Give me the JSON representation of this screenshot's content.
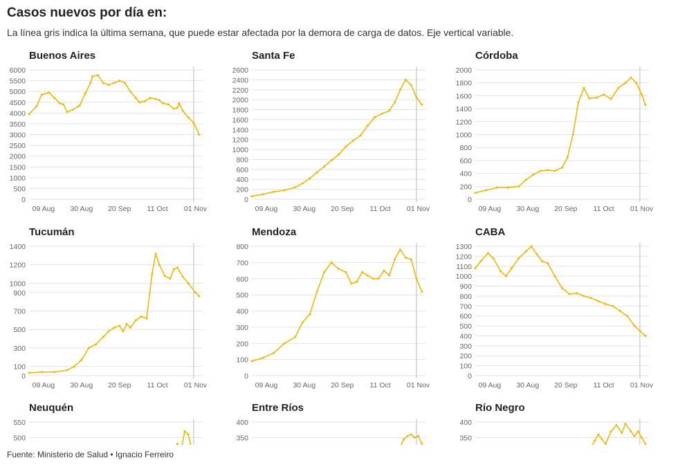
{
  "header": {
    "title": "Casos nuevos por día en:",
    "subtitle": "La línea gris indica la última semana, que puede estar afectada por la demora de carga de datos. Eje vertical variable."
  },
  "footer": {
    "source": "Fuente: Ministerio de Salud • Ignacio Ferreiro"
  },
  "style": {
    "line_color": "#f2b705",
    "grid_color": "#e2e2e2",
    "marker_color": "#bbbbbb"
  },
  "chart_data": [
    {
      "type": "line",
      "title": "Buenos Aires",
      "x_tick_labels": [
        "09 Aug",
        "30 Aug",
        "20 Sep",
        "11 Oct",
        "01 Nov"
      ],
      "y_ticks": [
        0,
        500,
        1000,
        1500,
        2000,
        2500,
        3000,
        3500,
        4000,
        4500,
        5000,
        5500,
        6000
      ],
      "ylim": [
        0,
        6000
      ],
      "x_range": [
        "2020-08-01",
        "2020-11-05"
      ],
      "last_week_marker": "2020-10-31",
      "x": [
        "2020-08-01",
        "2020-08-05",
        "2020-08-08",
        "2020-08-12",
        "2020-08-15",
        "2020-08-18",
        "2020-08-20",
        "2020-08-22",
        "2020-08-25",
        "2020-08-28",
        "2020-08-29",
        "2020-09-01",
        "2020-09-04",
        "2020-09-05",
        "2020-09-08",
        "2020-09-11",
        "2020-09-14",
        "2020-09-17",
        "2020-09-20",
        "2020-09-23",
        "2020-09-26",
        "2020-09-29",
        "2020-10-01",
        "2020-10-04",
        "2020-10-07",
        "2020-10-10",
        "2020-10-12",
        "2020-10-14",
        "2020-10-17",
        "2020-10-20",
        "2020-10-22",
        "2020-10-23",
        "2020-10-25",
        "2020-10-28",
        "2020-10-31",
        "2020-11-03"
      ],
      "y": [
        3950,
        4300,
        4850,
        4950,
        4700,
        4450,
        4400,
        4050,
        4150,
        4300,
        4350,
        4900,
        5400,
        5700,
        5750,
        5400,
        5300,
        5400,
        5500,
        5400,
        5000,
        4700,
        4500,
        4550,
        4700,
        4650,
        4600,
        4450,
        4400,
        4200,
        4250,
        4450,
        4100,
        3800,
        3550,
        3000
      ]
    },
    {
      "type": "line",
      "title": "Santa Fe",
      "x_tick_labels": [
        "09 Aug",
        "30 Aug",
        "20 Sep",
        "11 Oct",
        "01 Nov"
      ],
      "y_ticks": [
        0,
        200,
        400,
        600,
        800,
        1000,
        1200,
        1400,
        1600,
        1800,
        2000,
        2200,
        2400,
        2600
      ],
      "ylim": [
        0,
        2600
      ],
      "x_range": [
        "2020-08-01",
        "2020-11-05"
      ],
      "last_week_marker": "2020-10-31",
      "x": [
        "2020-08-01",
        "2020-08-07",
        "2020-08-13",
        "2020-08-19",
        "2020-08-25",
        "2020-08-29",
        "2020-09-02",
        "2020-09-06",
        "2020-09-10",
        "2020-09-14",
        "2020-09-18",
        "2020-09-22",
        "2020-09-26",
        "2020-09-30",
        "2020-10-04",
        "2020-10-08",
        "2020-10-12",
        "2020-10-16",
        "2020-10-19",
        "2020-10-22",
        "2020-10-25",
        "2020-10-28",
        "2020-10-31",
        "2020-11-03"
      ],
      "y": [
        60,
        100,
        150,
        180,
        240,
        320,
        420,
        540,
        660,
        780,
        900,
        1060,
        1180,
        1280,
        1480,
        1650,
        1720,
        1780,
        1950,
        2200,
        2400,
        2300,
        2050,
        1900
      ]
    },
    {
      "type": "line",
      "title": "Córdoba",
      "x_tick_labels": [
        "09 Aug",
        "30 Aug",
        "20 Sep",
        "11 Oct",
        "01 Nov"
      ],
      "y_ticks": [
        0,
        200,
        400,
        600,
        800,
        1000,
        1200,
        1400,
        1600,
        1800,
        2000
      ],
      "ylim": [
        0,
        2000
      ],
      "x_range": [
        "2020-08-01",
        "2020-11-05"
      ],
      "last_week_marker": "2020-10-31",
      "x": [
        "2020-08-01",
        "2020-08-07",
        "2020-08-13",
        "2020-08-19",
        "2020-08-25",
        "2020-08-29",
        "2020-09-02",
        "2020-09-06",
        "2020-09-10",
        "2020-09-14",
        "2020-09-18",
        "2020-09-21",
        "2020-09-24",
        "2020-09-27",
        "2020-09-30",
        "2020-10-03",
        "2020-10-07",
        "2020-10-11",
        "2020-10-15",
        "2020-10-19",
        "2020-10-23",
        "2020-10-26",
        "2020-10-29",
        "2020-11-01",
        "2020-11-03"
      ],
      "y": [
        100,
        140,
        180,
        180,
        200,
        300,
        380,
        440,
        450,
        440,
        490,
        650,
        1000,
        1500,
        1720,
        1560,
        1570,
        1620,
        1550,
        1720,
        1800,
        1880,
        1800,
        1620,
        1460
      ]
    },
    {
      "type": "line",
      "title": "Tucumán",
      "x_tick_labels": [
        "09 Aug",
        "30 Aug",
        "20 Sep",
        "11 Oct",
        "01 Nov"
      ],
      "y_ticks": [
        0,
        100,
        300,
        500,
        700,
        900,
        1000,
        1200,
        1400
      ],
      "ylim": [
        0,
        1400
      ],
      "x_range": [
        "2020-08-01",
        "2020-11-05"
      ],
      "last_week_marker": "2020-10-31",
      "x": [
        "2020-08-01",
        "2020-08-08",
        "2020-08-15",
        "2020-08-22",
        "2020-08-26",
        "2020-08-30",
        "2020-09-03",
        "2020-09-07",
        "2020-09-11",
        "2020-09-14",
        "2020-09-17",
        "2020-09-20",
        "2020-09-22",
        "2020-09-24",
        "2020-09-26",
        "2020-09-29",
        "2020-10-02",
        "2020-10-05",
        "2020-10-08",
        "2020-10-10",
        "2020-10-12",
        "2020-10-15",
        "2020-10-18",
        "2020-10-20",
        "2020-10-22",
        "2020-10-25",
        "2020-10-28",
        "2020-11-01",
        "2020-11-03"
      ],
      "y": [
        30,
        40,
        40,
        60,
        100,
        170,
        300,
        340,
        420,
        480,
        520,
        540,
        480,
        560,
        520,
        600,
        640,
        620,
        1100,
        1320,
        1200,
        1080,
        1050,
        1150,
        1170,
        1070,
        1000,
        900,
        860
      ]
    },
    {
      "type": "line",
      "title": "Mendoza",
      "x_tick_labels": [
        "09 Aug",
        "30 Aug",
        "20 Sep",
        "11 Oct",
        "01 Nov"
      ],
      "y_ticks": [
        0,
        100,
        200,
        300,
        400,
        500,
        600,
        700,
        800
      ],
      "ylim": [
        0,
        800
      ],
      "x_range": [
        "2020-08-01",
        "2020-11-05"
      ],
      "last_week_marker": "2020-10-31",
      "x": [
        "2020-08-01",
        "2020-08-07",
        "2020-08-13",
        "2020-08-19",
        "2020-08-25",
        "2020-08-29",
        "2020-09-02",
        "2020-09-06",
        "2020-09-10",
        "2020-09-14",
        "2020-09-18",
        "2020-09-22",
        "2020-09-25",
        "2020-09-28",
        "2020-10-01",
        "2020-10-04",
        "2020-10-07",
        "2020-10-10",
        "2020-10-13",
        "2020-10-16",
        "2020-10-19",
        "2020-10-22",
        "2020-10-25",
        "2020-10-28",
        "2020-10-31",
        "2020-11-03"
      ],
      "y": [
        90,
        110,
        140,
        200,
        240,
        330,
        380,
        520,
        640,
        700,
        660,
        640,
        570,
        580,
        640,
        620,
        600,
        600,
        650,
        620,
        720,
        780,
        730,
        720,
        600,
        520
      ]
    },
    {
      "type": "line",
      "title": "CABA",
      "x_tick_labels": [
        "09 Aug",
        "30 Aug",
        "20 Sep",
        "11 Oct",
        "01 Nov"
      ],
      "y_ticks": [
        0,
        100,
        200,
        300,
        400,
        500,
        600,
        700,
        800,
        900,
        1000,
        1100,
        1200,
        1300
      ],
      "ylim": [
        0,
        1300
      ],
      "x_range": [
        "2020-08-01",
        "2020-11-05"
      ],
      "last_week_marker": "2020-10-31",
      "x": [
        "2020-08-01",
        "2020-08-04",
        "2020-08-08",
        "2020-08-11",
        "2020-08-15",
        "2020-08-18",
        "2020-08-21",
        "2020-08-25",
        "2020-08-29",
        "2020-09-01",
        "2020-09-04",
        "2020-09-07",
        "2020-09-10",
        "2020-09-14",
        "2020-09-18",
        "2020-09-22",
        "2020-09-26",
        "2020-09-30",
        "2020-10-04",
        "2020-10-08",
        "2020-10-12",
        "2020-10-16",
        "2020-10-20",
        "2020-10-24",
        "2020-10-28",
        "2020-10-31",
        "2020-11-03"
      ],
      "y": [
        1080,
        1150,
        1230,
        1180,
        1050,
        1000,
        1080,
        1180,
        1250,
        1300,
        1220,
        1150,
        1130,
        1000,
        880,
        820,
        830,
        800,
        780,
        750,
        720,
        700,
        650,
        600,
        500,
        450,
        400
      ]
    },
    {
      "type": "line",
      "title": "Neuquén",
      "x_tick_labels": [],
      "y_ticks": [
        450,
        500,
        550
      ],
      "ylim": [
        0,
        600
      ],
      "x_range": [
        "2020-08-01",
        "2020-11-05"
      ],
      "last_week_marker": "2020-10-31",
      "x": [
        "2020-10-20",
        "2020-10-22",
        "2020-10-24",
        "2020-10-26",
        "2020-10-28",
        "2020-10-30"
      ],
      "y": [
        440,
        480,
        460,
        520,
        510,
        460
      ]
    },
    {
      "type": "line",
      "title": "Entre Ríos",
      "x_tick_labels": [],
      "y_ticks": [
        350,
        400
      ],
      "ylim": [
        0,
        400
      ],
      "x_range": [
        "2020-08-01",
        "2020-11-05"
      ],
      "last_week_marker": "2020-10-31",
      "x": [
        "2020-10-22",
        "2020-10-24",
        "2020-10-26",
        "2020-10-28",
        "2020-10-30",
        "2020-11-01",
        "2020-11-03"
      ],
      "y": [
        320,
        345,
        355,
        360,
        350,
        355,
        330
      ]
    },
    {
      "type": "line",
      "title": "Río Negro",
      "x_tick_labels": [],
      "y_ticks": [
        350,
        400
      ],
      "ylim": [
        0,
        400
      ],
      "x_range": [
        "2020-08-01",
        "2020-11-05"
      ],
      "last_week_marker": "2020-10-31",
      "x": [
        "2020-10-04",
        "2020-10-06",
        "2020-10-08",
        "2020-10-10",
        "2020-10-12",
        "2020-10-15",
        "2020-10-18",
        "2020-10-21",
        "2020-10-23",
        "2020-10-26",
        "2020-10-28",
        "2020-10-30",
        "2020-11-01",
        "2020-11-03"
      ],
      "y": [
        320,
        340,
        360,
        345,
        330,
        370,
        390,
        365,
        395,
        370,
        355,
        370,
        350,
        330
      ]
    }
  ]
}
